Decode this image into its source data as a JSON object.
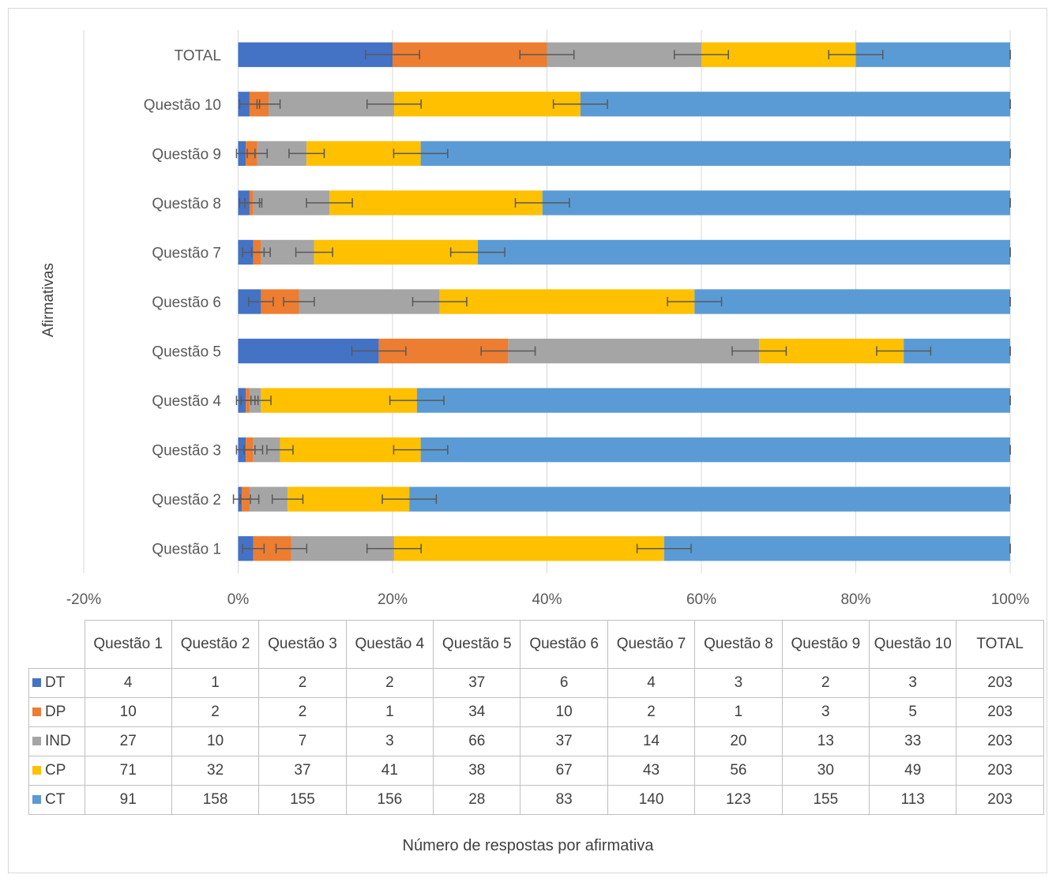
{
  "chart_data": {
    "type": "bar",
    "orientation": "horizontal",
    "stacking": "100% stacked",
    "title": "",
    "xlabel": "Número de respostas  por afirmativa",
    "ylabel": "Afirmativas",
    "xlim": [
      -0.2,
      1.0
    ],
    "x_tick_labels": [
      "-20%",
      "0%",
      "20%",
      "40%",
      "60%",
      "80%",
      "100%"
    ],
    "x_ticks": [
      -0.2,
      0,
      0.2,
      0.4,
      0.6,
      0.8,
      1.0
    ],
    "grid": "vertical gridlines",
    "legend": "in data table",
    "error_bars": true,
    "categories": [
      "Questão 1",
      "Questão 2",
      "Questão 3",
      "Questão 4",
      "Questão 5",
      "Questão 6",
      "Questão 7",
      "Questão 8",
      "Questão 9",
      "Questão 10",
      "TOTAL"
    ],
    "column_headers": [
      "Questão 1",
      "Questão 2",
      "Questão 3",
      "Questão 4",
      "Questão 5",
      "Questão 6",
      "Questão 7",
      "Questão 8",
      "Questão 9",
      "Questão 10",
      "TOTAL"
    ],
    "series": [
      {
        "name": "DT",
        "color": "#4472c4",
        "values": [
          4,
          1,
          2,
          2,
          37,
          6,
          4,
          3,
          2,
          3,
          203
        ]
      },
      {
        "name": "DP",
        "color": "#ed7d31",
        "values": [
          10,
          2,
          2,
          1,
          34,
          10,
          2,
          1,
          3,
          5,
          203
        ]
      },
      {
        "name": "IND",
        "color": "#a5a5a5",
        "values": [
          27,
          10,
          7,
          3,
          66,
          37,
          14,
          20,
          13,
          33,
          203
        ]
      },
      {
        "name": "CP",
        "color": "#ffc000",
        "values": [
          71,
          32,
          37,
          41,
          38,
          67,
          43,
          56,
          30,
          49,
          203
        ]
      },
      {
        "name": "CT",
        "color": "#5b9bd5",
        "values": [
          91,
          158,
          155,
          156,
          28,
          83,
          140,
          123,
          155,
          113,
          203
        ]
      }
    ]
  }
}
